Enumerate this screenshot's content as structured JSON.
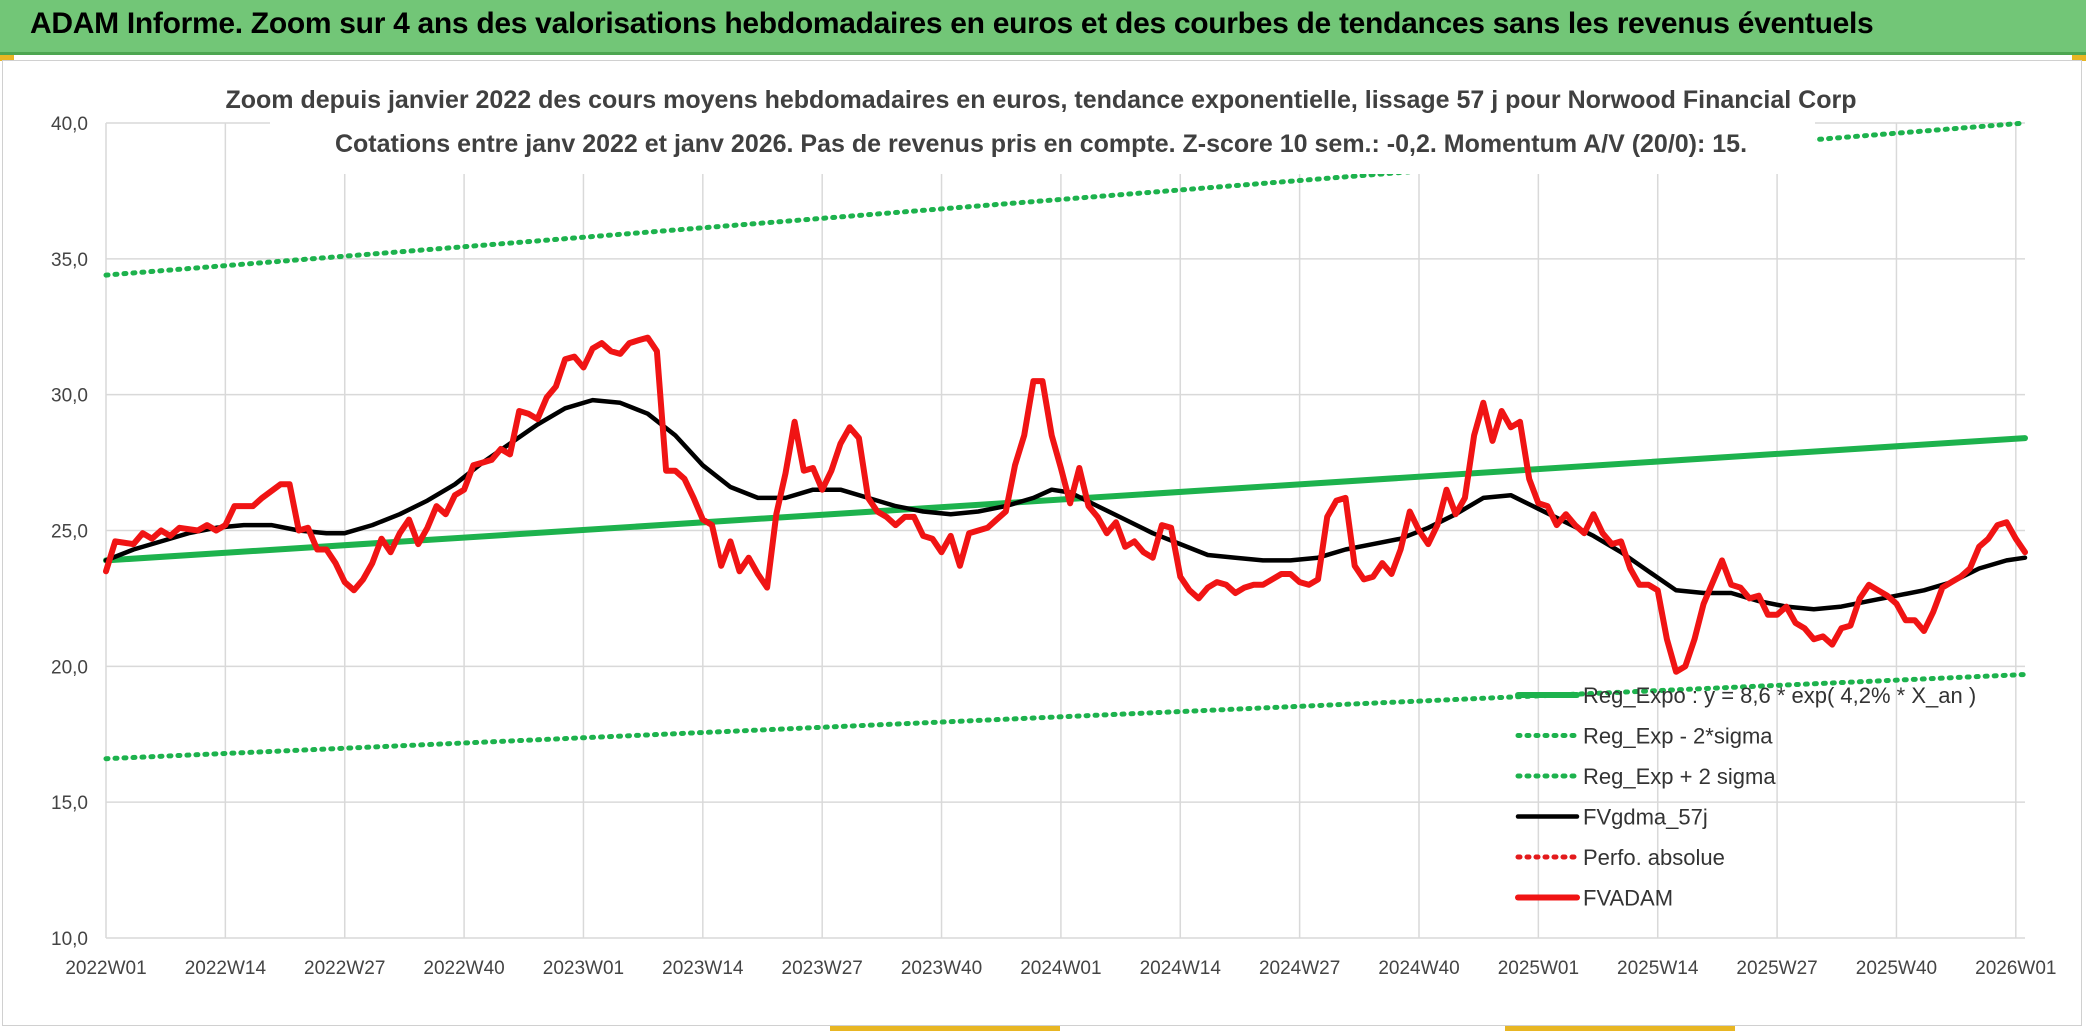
{
  "banner": {
    "title": "ADAM Informe. Zoom sur 4 ans des valorisations hebdomadaires en euros et des courbes de tendances sans les revenus éventuels"
  },
  "chart_data": {
    "type": "line",
    "title": "Zoom depuis janvier 2022 des cours moyens hebdomadaires en euros, tendance exponentielle, lissage 57 j pour Norwood Financial Corp",
    "subtitle": "Cotations entre janv 2022 et janv 2026. Pas de revenus pris en compte. Z-score 10 sem.: -0,2. Momentum A/V (20/0): 15.",
    "ylim": [
      10,
      40
    ],
    "y_ticks": [
      "10,0",
      "15,0",
      "20,0",
      "25,0",
      "30,0",
      "35,0",
      "40,0"
    ],
    "x_range": [
      0,
      209
    ],
    "x_ticks": [
      {
        "label": "2022W01",
        "x": 0
      },
      {
        "label": "2022W14",
        "x": 13
      },
      {
        "label": "2022W27",
        "x": 26
      },
      {
        "label": "2022W40",
        "x": 39
      },
      {
        "label": "2023W01",
        "x": 52
      },
      {
        "label": "2023W14",
        "x": 65
      },
      {
        "label": "2023W27",
        "x": 78
      },
      {
        "label": "2023W40",
        "x": 91
      },
      {
        "label": "2024W01",
        "x": 104
      },
      {
        "label": "2024W14",
        "x": 117
      },
      {
        "label": "2024W27",
        "x": 130
      },
      {
        "label": "2024W40",
        "x": 143
      },
      {
        "label": "2025W01",
        "x": 156
      },
      {
        "label": "2025W14",
        "x": 169
      },
      {
        "label": "2025W27",
        "x": 182
      },
      {
        "label": "2025W40",
        "x": 195
      },
      {
        "label": "2026W01",
        "x": 208
      }
    ],
    "series": [
      {
        "name": "Reg_Expo : y = 8,6 * exp( 4,2% * X_an )",
        "color": "#1db24d",
        "style": "solid-thick",
        "points": [
          [
            0,
            23.9
          ],
          [
            209,
            28.4
          ]
        ]
      },
      {
        "name": "Reg_Exp - 2*sigma",
        "color": "#1db24d",
        "style": "dotted",
        "points": [
          [
            0,
            16.6
          ],
          [
            209,
            19.7
          ]
        ]
      },
      {
        "name": "Reg_Exp + 2 sigma",
        "color": "#1db24d",
        "style": "dotted",
        "points": [
          [
            0,
            34.4
          ],
          [
            209,
            40.0
          ]
        ]
      },
      {
        "name": "FVgdma_57j",
        "color": "#000000",
        "style": "solid",
        "points": [
          [
            0,
            23.9
          ],
          [
            3,
            24.3
          ],
          [
            6,
            24.6
          ],
          [
            9,
            24.9
          ],
          [
            12,
            25.1
          ],
          [
            15,
            25.2
          ],
          [
            18,
            25.2
          ],
          [
            21,
            25.0
          ],
          [
            24,
            24.9
          ],
          [
            26,
            24.9
          ],
          [
            29,
            25.2
          ],
          [
            32,
            25.6
          ],
          [
            35,
            26.1
          ],
          [
            38,
            26.7
          ],
          [
            41,
            27.5
          ],
          [
            44,
            28.2
          ],
          [
            47,
            28.9
          ],
          [
            50,
            29.5
          ],
          [
            53,
            29.8
          ],
          [
            56,
            29.7
          ],
          [
            59,
            29.3
          ],
          [
            62,
            28.5
          ],
          [
            65,
            27.4
          ],
          [
            68,
            26.6
          ],
          [
            71,
            26.2
          ],
          [
            74,
            26.2
          ],
          [
            77,
            26.5
          ],
          [
            80,
            26.5
          ],
          [
            83,
            26.2
          ],
          [
            86,
            25.9
          ],
          [
            89,
            25.7
          ],
          [
            92,
            25.6
          ],
          [
            95,
            25.7
          ],
          [
            98,
            25.9
          ],
          [
            101,
            26.2
          ],
          [
            103,
            26.5
          ],
          [
            105,
            26.4
          ],
          [
            108,
            25.9
          ],
          [
            111,
            25.4
          ],
          [
            114,
            24.9
          ],
          [
            117,
            24.5
          ],
          [
            120,
            24.1
          ],
          [
            123,
            24.0
          ],
          [
            126,
            23.9
          ],
          [
            129,
            23.9
          ],
          [
            132,
            24.0
          ],
          [
            135,
            24.3
          ],
          [
            138,
            24.5
          ],
          [
            141,
            24.7
          ],
          [
            144,
            25.1
          ],
          [
            147,
            25.6
          ],
          [
            150,
            26.2
          ],
          [
            153,
            26.3
          ],
          [
            156,
            25.8
          ],
          [
            159,
            25.3
          ],
          [
            162,
            24.8
          ],
          [
            165,
            24.2
          ],
          [
            168,
            23.5
          ],
          [
            171,
            22.8
          ],
          [
            174,
            22.7
          ],
          [
            177,
            22.7
          ],
          [
            180,
            22.4
          ],
          [
            183,
            22.2
          ],
          [
            186,
            22.1
          ],
          [
            189,
            22.2
          ],
          [
            192,
            22.4
          ],
          [
            195,
            22.6
          ],
          [
            198,
            22.8
          ],
          [
            201,
            23.1
          ],
          [
            204,
            23.6
          ],
          [
            207,
            23.9
          ],
          [
            209,
            24.0
          ]
        ]
      },
      {
        "name": "Perfo. absolue",
        "color": "#e31a1c",
        "style": "dotted",
        "points": []
      },
      {
        "name": "FVADAM",
        "color": "#f01414",
        "style": "solid-thick",
        "points": [
          [
            0,
            23.5
          ],
          [
            1,
            24.6
          ],
          [
            3,
            24.5
          ],
          [
            4,
            24.9
          ],
          [
            5,
            24.7
          ],
          [
            6,
            25.0
          ],
          [
            7,
            24.8
          ],
          [
            8,
            25.1
          ],
          [
            10,
            25.0
          ],
          [
            11,
            25.2
          ],
          [
            12,
            25.0
          ],
          [
            13,
            25.2
          ],
          [
            14,
            25.9
          ],
          [
            16,
            25.9
          ],
          [
            17,
            26.2
          ],
          [
            19,
            26.7
          ],
          [
            20,
            26.7
          ],
          [
            21,
            25.0
          ],
          [
            22,
            25.1
          ],
          [
            23,
            24.3
          ],
          [
            24,
            24.3
          ],
          [
            25,
            23.8
          ],
          [
            26,
            23.1
          ],
          [
            27,
            22.8
          ],
          [
            28,
            23.2
          ],
          [
            29,
            23.8
          ],
          [
            30,
            24.7
          ],
          [
            31,
            24.2
          ],
          [
            32,
            24.9
          ],
          [
            33,
            25.4
          ],
          [
            34,
            24.5
          ],
          [
            35,
            25.1
          ],
          [
            36,
            25.9
          ],
          [
            37,
            25.6
          ],
          [
            38,
            26.3
          ],
          [
            39,
            26.5
          ],
          [
            40,
            27.4
          ],
          [
            41,
            27.5
          ],
          [
            42,
            27.6
          ],
          [
            43,
            28.0
          ],
          [
            44,
            27.8
          ],
          [
            45,
            29.4
          ],
          [
            46,
            29.3
          ],
          [
            47,
            29.1
          ],
          [
            48,
            29.9
          ],
          [
            49,
            30.3
          ],
          [
            50,
            31.3
          ],
          [
            51,
            31.4
          ],
          [
            52,
            31.0
          ],
          [
            53,
            31.7
          ],
          [
            54,
            31.9
          ],
          [
            55,
            31.6
          ],
          [
            56,
            31.5
          ],
          [
            57,
            31.9
          ],
          [
            58,
            32.0
          ],
          [
            59,
            32.1
          ],
          [
            60,
            31.6
          ],
          [
            61,
            27.2
          ],
          [
            62,
            27.2
          ],
          [
            63,
            26.9
          ],
          [
            64,
            26.2
          ],
          [
            65,
            25.4
          ],
          [
            66,
            25.2
          ],
          [
            67,
            23.7
          ],
          [
            68,
            24.6
          ],
          [
            69,
            23.5
          ],
          [
            70,
            24.0
          ],
          [
            71,
            23.4
          ],
          [
            72,
            22.9
          ],
          [
            73,
            25.6
          ],
          [
            74,
            27.1
          ],
          [
            75,
            29.0
          ],
          [
            76,
            27.2
          ],
          [
            77,
            27.3
          ],
          [
            78,
            26.5
          ],
          [
            79,
            27.2
          ],
          [
            80,
            28.2
          ],
          [
            81,
            28.8
          ],
          [
            82,
            28.4
          ],
          [
            83,
            26.2
          ],
          [
            84,
            25.7
          ],
          [
            85,
            25.5
          ],
          [
            86,
            25.2
          ],
          [
            87,
            25.5
          ],
          [
            88,
            25.5
          ],
          [
            89,
            24.8
          ],
          [
            90,
            24.7
          ],
          [
            91,
            24.2
          ],
          [
            92,
            24.8
          ],
          [
            93,
            23.7
          ],
          [
            94,
            24.9
          ],
          [
            95,
            25.0
          ],
          [
            96,
            25.1
          ],
          [
            97,
            25.4
          ],
          [
            98,
            25.7
          ],
          [
            99,
            27.4
          ],
          [
            100,
            28.5
          ],
          [
            101,
            30.5
          ],
          [
            102,
            30.5
          ],
          [
            103,
            28.5
          ],
          [
            104,
            27.3
          ],
          [
            105,
            26.0
          ],
          [
            106,
            27.3
          ],
          [
            107,
            25.9
          ],
          [
            108,
            25.5
          ],
          [
            109,
            24.9
          ],
          [
            110,
            25.3
          ],
          [
            111,
            24.4
          ],
          [
            112,
            24.6
          ],
          [
            113,
            24.2
          ],
          [
            114,
            24.0
          ],
          [
            115,
            25.2
          ],
          [
            116,
            25.1
          ],
          [
            117,
            23.3
          ],
          [
            118,
            22.8
          ],
          [
            119,
            22.5
          ],
          [
            120,
            22.9
          ],
          [
            121,
            23.1
          ],
          [
            122,
            23.0
          ],
          [
            123,
            22.7
          ],
          [
            124,
            22.9
          ],
          [
            125,
            23.0
          ],
          [
            126,
            23.0
          ],
          [
            127,
            23.2
          ],
          [
            128,
            23.4
          ],
          [
            129,
            23.4
          ],
          [
            130,
            23.1
          ],
          [
            131,
            23.0
          ],
          [
            132,
            23.2
          ],
          [
            133,
            25.5
          ],
          [
            134,
            26.1
          ],
          [
            135,
            26.2
          ],
          [
            136,
            23.7
          ],
          [
            137,
            23.2
          ],
          [
            138,
            23.3
          ],
          [
            139,
            23.8
          ],
          [
            140,
            23.4
          ],
          [
            141,
            24.3
          ],
          [
            142,
            25.7
          ],
          [
            143,
            25.0
          ],
          [
            144,
            24.5
          ],
          [
            145,
            25.2
          ],
          [
            146,
            26.5
          ],
          [
            147,
            25.6
          ],
          [
            148,
            26.2
          ],
          [
            149,
            28.5
          ],
          [
            150,
            29.7
          ],
          [
            151,
            28.3
          ],
          [
            152,
            29.4
          ],
          [
            153,
            28.8
          ],
          [
            154,
            29.0
          ],
          [
            155,
            26.9
          ],
          [
            156,
            26.0
          ],
          [
            157,
            25.9
          ],
          [
            158,
            25.2
          ],
          [
            159,
            25.6
          ],
          [
            160,
            25.2
          ],
          [
            161,
            24.9
          ],
          [
            162,
            25.6
          ],
          [
            163,
            24.9
          ],
          [
            164,
            24.5
          ],
          [
            165,
            24.6
          ],
          [
            166,
            23.6
          ],
          [
            167,
            23.0
          ],
          [
            168,
            23.0
          ],
          [
            169,
            22.8
          ],
          [
            170,
            21.0
          ],
          [
            171,
            19.8
          ],
          [
            172,
            20.0
          ],
          [
            173,
            21.0
          ],
          [
            174,
            22.3
          ],
          [
            175,
            23.1
          ],
          [
            176,
            23.9
          ],
          [
            177,
            23.0
          ],
          [
            178,
            22.9
          ],
          [
            179,
            22.5
          ],
          [
            180,
            22.6
          ],
          [
            181,
            21.9
          ],
          [
            182,
            21.9
          ],
          [
            183,
            22.2
          ],
          [
            184,
            21.6
          ],
          [
            185,
            21.4
          ],
          [
            186,
            21.0
          ],
          [
            187,
            21.1
          ],
          [
            188,
            20.8
          ],
          [
            189,
            21.4
          ],
          [
            190,
            21.5
          ],
          [
            191,
            22.5
          ],
          [
            192,
            23.0
          ],
          [
            193,
            22.8
          ],
          [
            194,
            22.6
          ],
          [
            195,
            22.3
          ],
          [
            196,
            21.7
          ],
          [
            197,
            21.7
          ],
          [
            198,
            21.3
          ],
          [
            199,
            22.0
          ],
          [
            200,
            22.9
          ],
          [
            201,
            23.1
          ],
          [
            202,
            23.3
          ],
          [
            203,
            23.6
          ],
          [
            204,
            24.4
          ],
          [
            205,
            24.7
          ],
          [
            206,
            25.2
          ],
          [
            207,
            25.3
          ],
          [
            208,
            24.7
          ],
          [
            209,
            24.2
          ]
        ]
      }
    ],
    "legend_position": "bottom-right"
  }
}
